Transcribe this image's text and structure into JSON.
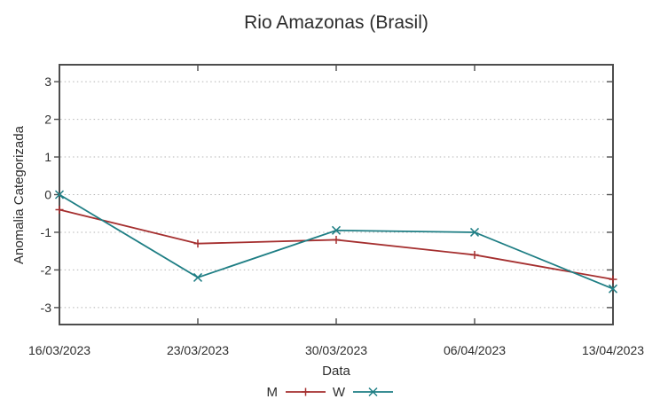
{
  "title": "Rio Amazonas (Brasil)",
  "chart_data": {
    "type": "line",
    "title": "Rio Amazonas (Brasil)",
    "xlabel": "Data",
    "ylabel": "Anomalia Categorizada",
    "categories": [
      "16/03/2023",
      "23/03/2023",
      "30/03/2023",
      "06/04/2023",
      "13/04/2023"
    ],
    "series": [
      {
        "name": "M",
        "color": "#a52f2f",
        "marker": "plus",
        "values": [
          -0.4,
          -1.3,
          -1.2,
          -1.6,
          -2.25
        ]
      },
      {
        "name": "W",
        "color": "#1e7e84",
        "marker": "cross",
        "values": [
          0.0,
          -2.2,
          -0.95,
          -1.0,
          -2.5
        ]
      }
    ],
    "yticks": [
      -3,
      -2,
      -1,
      0,
      1,
      2,
      3
    ],
    "ylim": [
      -3.45,
      3.45
    ],
    "grid": "horizontal-dotted",
    "legend_position": "bottom-center"
  },
  "style": {
    "border_color": "#4d4d4d",
    "grid_color": "#b5b5b5",
    "text_color": "#2d2d2d",
    "background": "#ffffff"
  }
}
